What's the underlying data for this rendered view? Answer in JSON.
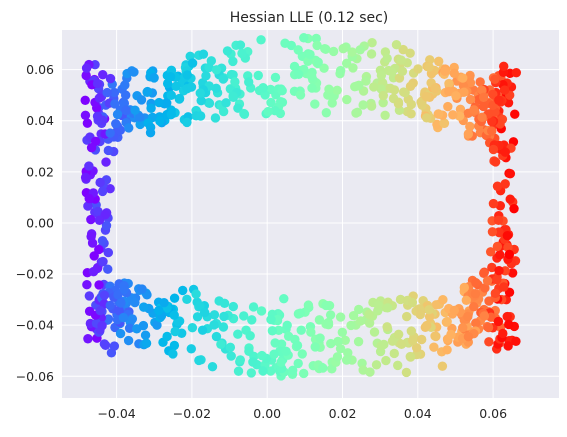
{
  "chart_data": {
    "type": "scatter",
    "title": "Hessian LLE (0.12 sec)",
    "xlabel": "",
    "ylabel": "",
    "xlim": [
      -0.0545,
      0.0775
    ],
    "ylim": [
      -0.0685,
      0.0755
    ],
    "xticks": [
      -0.04,
      -0.02,
      0.0,
      0.02,
      0.04,
      0.06
    ],
    "xtick_labels": [
      "−0.04",
      "−0.02",
      "0.00",
      "0.02",
      "0.04",
      "0.06"
    ],
    "yticks": [
      -0.06,
      -0.04,
      -0.02,
      0.0,
      0.02,
      0.04,
      0.06
    ],
    "ytick_labels": [
      "−0.06",
      "−0.04",
      "−0.02",
      "0.00",
      "0.02",
      "0.04",
      "0.06"
    ],
    "grid": true,
    "background_color": "#eaeaf2",
    "grid_color": "#ffffff",
    "colormap": "rainbow",
    "point_count": 1000,
    "point_shape": {
      "description": "points lie on a horseshoe/U-shaped band; x ranges from about -0.048 to 0.071, y from about -0.061 to 0.072",
      "left_edge_x": -0.048,
      "right_edge_x": 0.071,
      "top_y": 0.072,
      "bottom_y": -0.061
    }
  }
}
